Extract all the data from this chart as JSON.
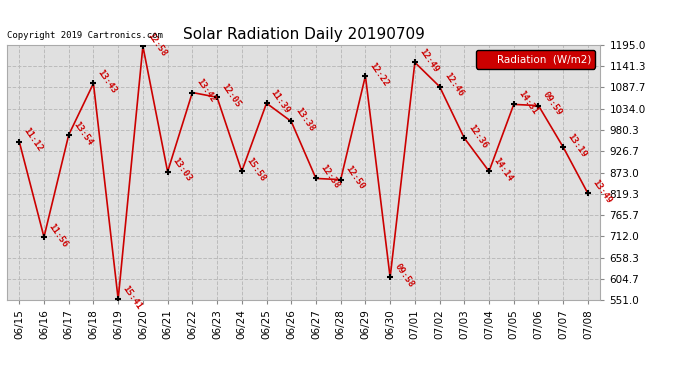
{
  "title": "Solar Radiation Daily 20190709",
  "copyright": "Copyright 2019 Cartronics.com",
  "legend_label": "Radiation  (W/m2)",
  "fig_bg_color": "#ffffff",
  "plot_bg_color": "#e0e0e0",
  "grid_color": "#bbbbbb",
  "line_color": "#cc0000",
  "marker_color": "#000000",
  "label_color": "#cc0000",
  "copyright_color": "#000000",
  "title_color": "#000000",
  "ytick_color": "#000000",
  "xtick_color": "#000000",
  "ylim": [
    551.0,
    1195.0
  ],
  "yticks": [
    551.0,
    604.7,
    658.3,
    712.0,
    765.7,
    819.3,
    873.0,
    926.7,
    980.3,
    1034.0,
    1087.7,
    1141.3,
    1195.0
  ],
  "points": [
    {
      "date": "06/15",
      "value": 951,
      "label": "11:12"
    },
    {
      "date": "06/16",
      "value": 710,
      "label": "11:56"
    },
    {
      "date": "06/17",
      "value": 968,
      "label": "13:54"
    },
    {
      "date": "06/18",
      "value": 1098,
      "label": "13:43"
    },
    {
      "date": "06/19",
      "value": 553,
      "label": "15:41"
    },
    {
      "date": "06/20",
      "value": 1192,
      "label": "12:58"
    },
    {
      "date": "06/21",
      "value": 875,
      "label": "13:03"
    },
    {
      "date": "06/22",
      "value": 1075,
      "label": "13:42"
    },
    {
      "date": "06/23",
      "value": 1063,
      "label": "12:05"
    },
    {
      "date": "06/24",
      "value": 876,
      "label": "15:58"
    },
    {
      "date": "06/25",
      "value": 1048,
      "label": "11:39"
    },
    {
      "date": "06/26",
      "value": 1002,
      "label": "13:38"
    },
    {
      "date": "06/27",
      "value": 858,
      "label": "12:38"
    },
    {
      "date": "06/28",
      "value": 855,
      "label": "12:50"
    },
    {
      "date": "06/29",
      "value": 1117,
      "label": "12:22"
    },
    {
      "date": "06/30",
      "value": 608,
      "label": "09:58"
    },
    {
      "date": "07/01",
      "value": 1151,
      "label": "12:49"
    },
    {
      "date": "07/02",
      "value": 1090,
      "label": "12:46"
    },
    {
      "date": "07/03",
      "value": 960,
      "label": "12:36"
    },
    {
      "date": "07/04",
      "value": 876,
      "label": "14:14"
    },
    {
      "date": "07/05",
      "value": 1045,
      "label": "14:31"
    },
    {
      "date": "07/06",
      "value": 1042,
      "label": "09:59"
    },
    {
      "date": "07/07",
      "value": 937,
      "label": "13:19"
    },
    {
      "date": "07/08",
      "value": 820,
      "label": "13:49"
    }
  ]
}
